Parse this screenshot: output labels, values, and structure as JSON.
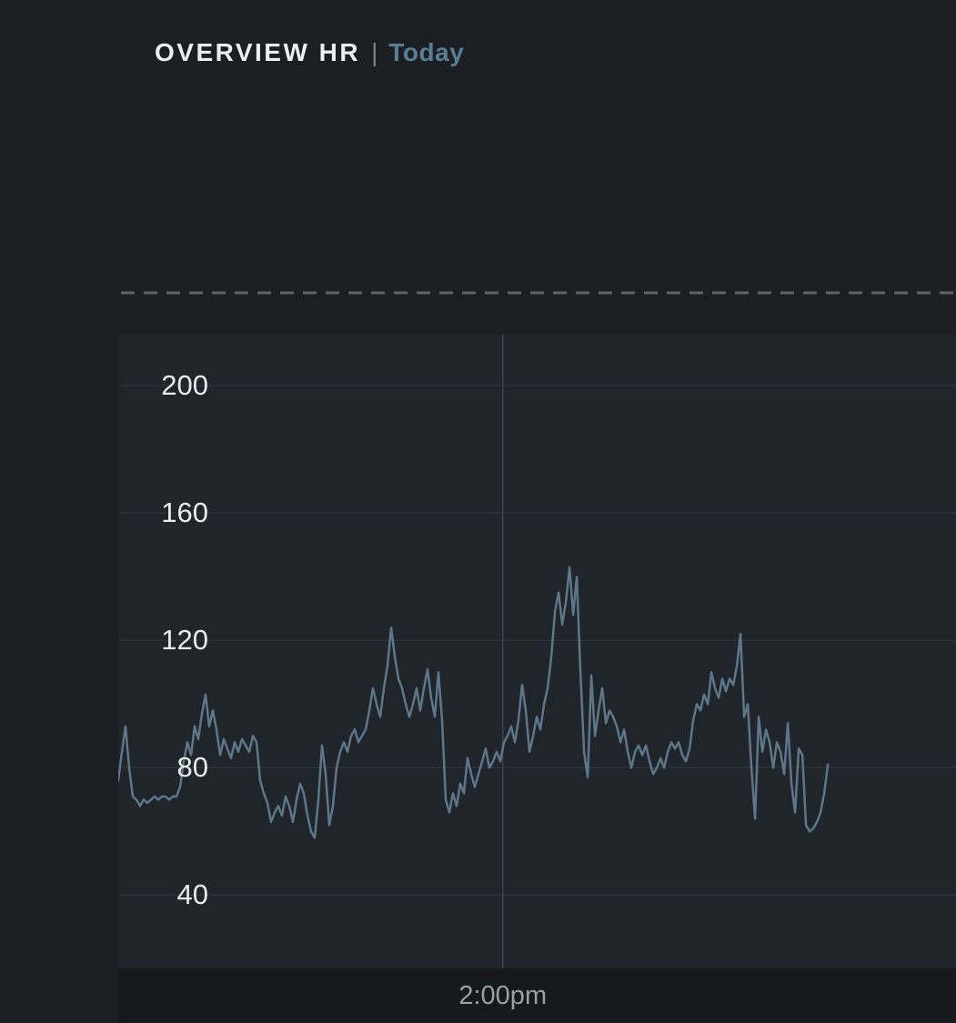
{
  "header": {
    "title": "OVERVIEW HR",
    "separator": "|",
    "range_label": "Today"
  },
  "chart_data": {
    "type": "line",
    "title": "OVERVIEW HR",
    "xlabel": "",
    "ylabel": "",
    "legend": "none",
    "grid": "horizontal-gridlines-plus-one-vertical",
    "y_ticks": [
      200,
      160,
      120,
      80,
      40
    ],
    "ylim": [
      17,
      216
    ],
    "x_tick": {
      "label": "2:00pm",
      "position": 0.459
    },
    "series": [
      {
        "name": "HR (bpm)",
        "x_range_fraction": [
          0,
          0.847
        ],
        "values": [
          76,
          85,
          93,
          80,
          71,
          70,
          68,
          70,
          69,
          70,
          71,
          70,
          71,
          71,
          70,
          71,
          71,
          74,
          82,
          88,
          84,
          93,
          89,
          97,
          103,
          93,
          98,
          92,
          84,
          89,
          86,
          83,
          88,
          85,
          89,
          87,
          85,
          90,
          88,
          76,
          72,
          69,
          63,
          66,
          68,
          65,
          71,
          68,
          63,
          70,
          75,
          72,
          65,
          60,
          58,
          70,
          87,
          78,
          62,
          68,
          80,
          85,
          88,
          85,
          90,
          92,
          88,
          90,
          92,
          98,
          105,
          100,
          96,
          105,
          112,
          124,
          115,
          108,
          105,
          100,
          96,
          100,
          105,
          98,
          105,
          111,
          102,
          96,
          110,
          95,
          70,
          66,
          72,
          68,
          75,
          72,
          83,
          78,
          74,
          78,
          82,
          86,
          80,
          82,
          85,
          82,
          88,
          90,
          93,
          88,
          95,
          106,
          98,
          85,
          90,
          96,
          92,
          100,
          105,
          115,
          129,
          135,
          125,
          132,
          143,
          128,
          140,
          110,
          85,
          77,
          109,
          90,
          98,
          105,
          94,
          98,
          96,
          93,
          88,
          92,
          85,
          80,
          85,
          87,
          84,
          87,
          82,
          78,
          80,
          83,
          80,
          85,
          88,
          86,
          88,
          84,
          82,
          86,
          95,
          100,
          98,
          103,
          100,
          110,
          105,
          102,
          108,
          104,
          108,
          106,
          112,
          122,
          96,
          100,
          80,
          64,
          96,
          85,
          92,
          88,
          80,
          88,
          85,
          78,
          94,
          75,
          66,
          86,
          84,
          62,
          60,
          61,
          63,
          66,
          72,
          81
        ]
      }
    ]
  },
  "colors": {
    "page_bg": "#1b1e23",
    "panel_bg": "#20252c",
    "axis_bar_bg": "#15181d",
    "gridline": "#2c323a",
    "vertical_gridline": "#3d444d",
    "hr_line": "#5e7687",
    "dashed_line": "#5f646a",
    "title": "#eceef0",
    "accent": "#5b7d93",
    "tick_label": "#e9ecee",
    "x_label": "#98a0a8"
  }
}
